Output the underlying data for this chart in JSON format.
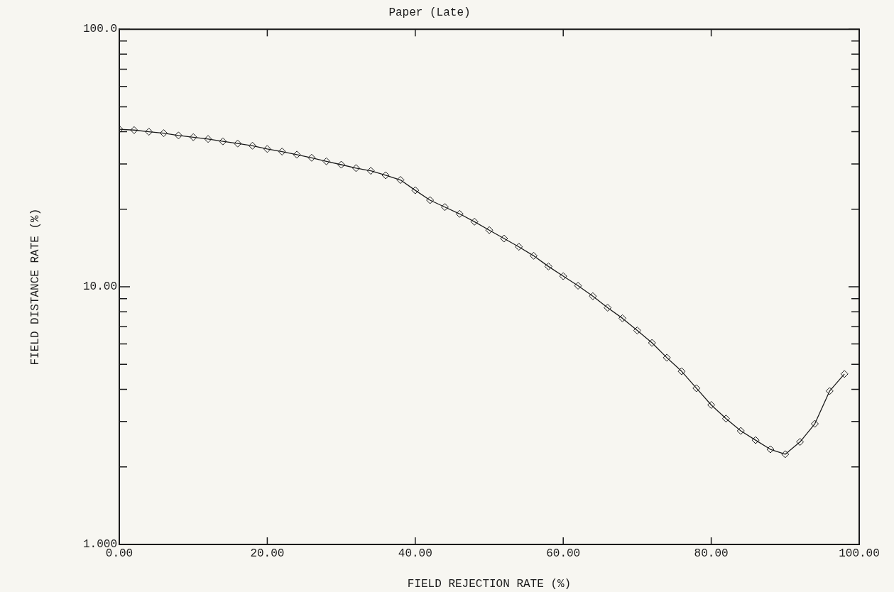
{
  "chart_data": {
    "type": "line",
    "title": "Paper (Late)",
    "xlabel": "FIELD REJECTION RATE (%)",
    "ylabel": "FIELD DISTANCE RATE (%)",
    "x": [
      0,
      2,
      4,
      6,
      8,
      10,
      12,
      14,
      16,
      18,
      20,
      22,
      24,
      26,
      28,
      30,
      32,
      34,
      36,
      38,
      40,
      42,
      44,
      46,
      48,
      50,
      52,
      54,
      56,
      58,
      60,
      62,
      64,
      66,
      68,
      70,
      72,
      74,
      76,
      78,
      80,
      82,
      84,
      86,
      88,
      90,
      92,
      94,
      96,
      98
    ],
    "series": [
      {
        "color": "#1a1a1a",
        "values": [
          40.9,
          40.6,
          40.0,
          39.5,
          38.7,
          38.1,
          37.5,
          36.7,
          36.0,
          35.3,
          34.3,
          33.5,
          32.6,
          31.7,
          30.7,
          29.8,
          28.9,
          28.2,
          27.1,
          26.0,
          23.7,
          21.7,
          20.4,
          19.2,
          17.9,
          16.6,
          15.4,
          14.3,
          13.2,
          12.0,
          11.0,
          10.1,
          9.2,
          8.3,
          7.55,
          6.77,
          6.06,
          5.31,
          4.7,
          4.04,
          3.48,
          3.08,
          2.76,
          2.54,
          2.34,
          2.24,
          2.5,
          2.94,
          3.94,
          4.59
        ]
      }
    ],
    "xlim": [
      0,
      100
    ],
    "ylim": [
      1,
      100
    ],
    "log": "y",
    "xticks": [
      {
        "value": 0,
        "label": "0.00"
      },
      {
        "value": 20,
        "label": "20.00"
      },
      {
        "value": 40,
        "label": "40.00"
      },
      {
        "value": 60,
        "label": "60.00"
      },
      {
        "value": 80,
        "label": "80.00"
      },
      {
        "value": 100,
        "label": "100.00"
      }
    ],
    "yticks": [
      {
        "value": 1,
        "label": "1.000"
      },
      {
        "value": 2,
        "label": null
      },
      {
        "value": 3,
        "label": null
      },
      {
        "value": 4,
        "label": null
      },
      {
        "value": 5,
        "label": null
      },
      {
        "value": 6,
        "label": null
      },
      {
        "value": 7,
        "label": null
      },
      {
        "value": 8,
        "label": null
      },
      {
        "value": 9,
        "label": null
      },
      {
        "value": 10,
        "label": "10.00"
      },
      {
        "value": 20,
        "label": null
      },
      {
        "value": 30,
        "label": null
      },
      {
        "value": 40,
        "label": null
      },
      {
        "value": 50,
        "label": null
      },
      {
        "value": 60,
        "label": null
      },
      {
        "value": 70,
        "label": null
      },
      {
        "value": 80,
        "label": null
      },
      {
        "value": 90,
        "label": null
      },
      {
        "value": 100,
        "label": "100.0"
      }
    ],
    "grid": false,
    "legend": false,
    "marker": "diamond",
    "line_style": "solid"
  }
}
